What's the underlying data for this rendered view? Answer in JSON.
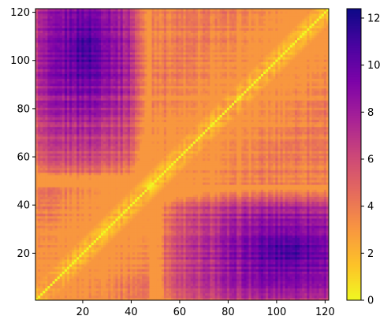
{
  "chart_data": {
    "type": "heatmap",
    "title": "",
    "xlabel": "",
    "ylabel": "",
    "n": 121,
    "xlim": [
      1,
      121
    ],
    "ylim": [
      1,
      121
    ],
    "x_ticks": [
      20,
      40,
      60,
      80,
      100,
      120
    ],
    "y_ticks": [
      20,
      40,
      60,
      80,
      100,
      120
    ],
    "x_tick_labels": [
      "20",
      "40",
      "60",
      "80",
      "100",
      "120"
    ],
    "y_tick_labels": [
      "20",
      "40",
      "60",
      "80",
      "100",
      "120"
    ],
    "colormap": "plasma_r",
    "colorbar": {
      "min": 0,
      "max": 12.4,
      "ticks": [
        0,
        2,
        4,
        6,
        8,
        10,
        12
      ],
      "tick_labels": [
        "0",
        "2",
        "4",
        "6",
        "8",
        "10",
        "12"
      ]
    },
    "structure": "symmetric pairwise distance matrix, zero on the diagonal; residues 1-45 form a compact cluster (values ~2-4), residues 50-121 form a second compact cluster (values ~1-4); cross-block distances mostly 6-12, peaking near (21, 93-120) and (93-120, 21)"
  }
}
